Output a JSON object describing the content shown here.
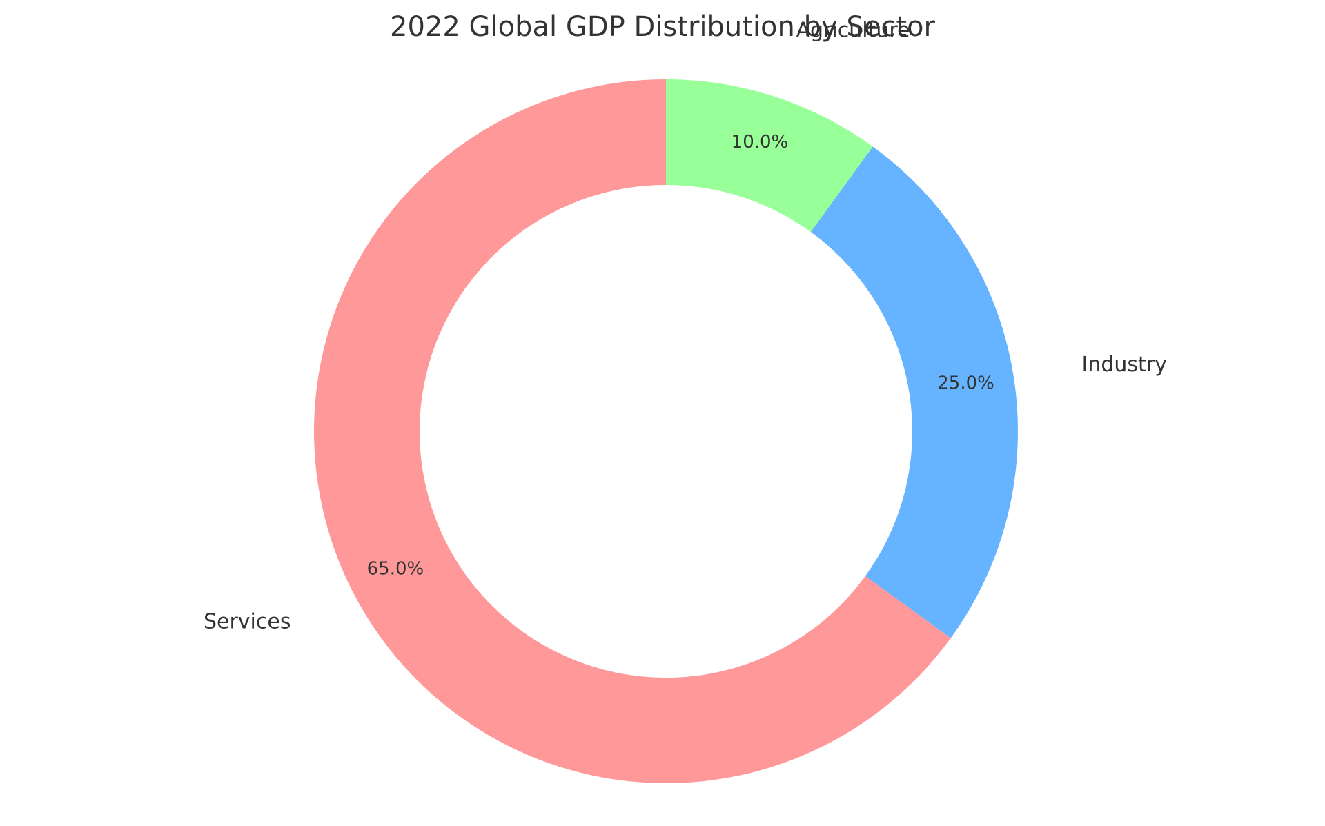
{
  "chart_data": {
    "type": "pie",
    "title": "2022 Global GDP Distribution by Sector",
    "donut": true,
    "start_angle_deg": 90,
    "direction": "clockwise",
    "slices": [
      {
        "label": "Agriculture",
        "value": 10.0,
        "value_label": "10.0%",
        "color": "#99ff99"
      },
      {
        "label": "Industry",
        "value": 25.0,
        "value_label": "25.0%",
        "color": "#66b3ff"
      },
      {
        "label": "Services",
        "value": 65.0,
        "value_label": "65.0%",
        "color": "#ff9999"
      }
    ]
  }
}
